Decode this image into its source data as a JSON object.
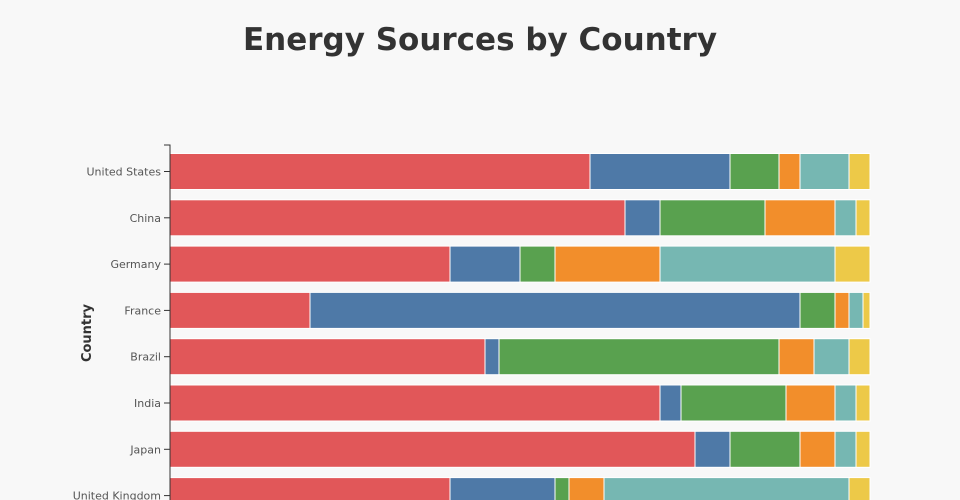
{
  "chart_data": {
    "type": "bar",
    "orientation": "horizontal",
    "stacked": true,
    "normalized": true,
    "title": "Energy Sources by Country",
    "ylabel": "Country",
    "xlabel": "",
    "categories": [
      "United States",
      "China",
      "Germany",
      "France",
      "Brazil",
      "India",
      "Japan",
      "United Kingdom"
    ],
    "xlim": [
      0,
      100
    ],
    "grid": false,
    "legend": "none",
    "series": [
      {
        "color": "#e15759",
        "values": [
          60,
          65,
          40,
          20,
          45,
          70,
          75,
          40
        ]
      },
      {
        "color": "#4e79a7",
        "values": [
          20,
          5,
          10,
          70,
          2,
          3,
          5,
          15
        ]
      },
      {
        "color": "#59a14f",
        "values": [
          7,
          15,
          5,
          5,
          40,
          15,
          10,
          2
        ]
      },
      {
        "color": "#f28e2b",
        "values": [
          3,
          10,
          15,
          2,
          5,
          7,
          5,
          5
        ]
      },
      {
        "color": "#76b7b2",
        "values": [
          7,
          3,
          25,
          2,
          5,
          3,
          3,
          35
        ]
      },
      {
        "color": "#edc948",
        "values": [
          3,
          2,
          5,
          1,
          3,
          2,
          2,
          3
        ]
      }
    ]
  }
}
